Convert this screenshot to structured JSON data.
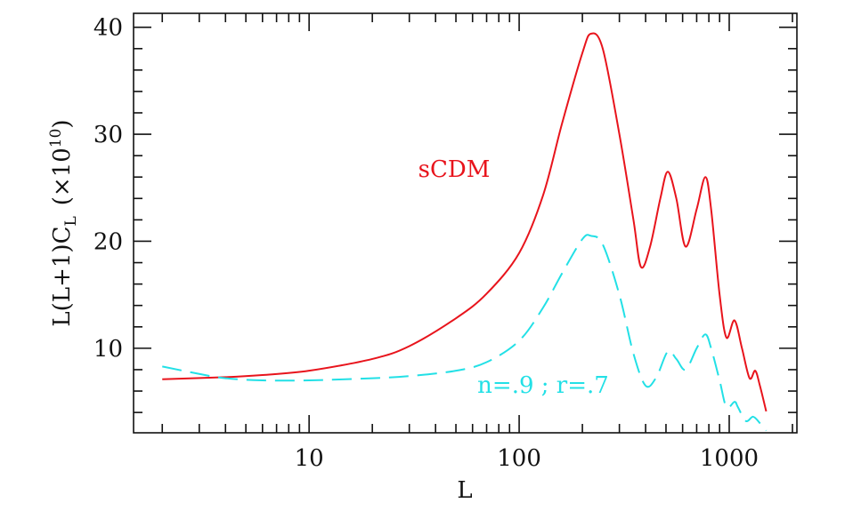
{
  "chart_data": {
    "type": "line",
    "x_label": "L",
    "y_label": {
      "main": "L(L+1)C",
      "sub": "L",
      "pre": "(×10",
      "sup": "10",
      "post": ")"
    },
    "xscale": "log",
    "xlim": [
      1.46,
      2100
    ],
    "ylim": [
      2.1,
      41.3
    ],
    "xticks": [
      10,
      100,
      1000
    ],
    "xminor_ticks": [
      2,
      3,
      4,
      5,
      6,
      7,
      8,
      9,
      20,
      30,
      40,
      50,
      60,
      70,
      80,
      90,
      200,
      300,
      400,
      500,
      600,
      700,
      800,
      900,
      2000
    ],
    "yticks": [
      10,
      20,
      30,
      40
    ],
    "yminor_ticks": [
      4,
      6,
      8,
      12,
      14,
      16,
      18,
      22,
      24,
      26,
      28,
      32,
      34,
      36,
      38
    ],
    "series": [
      {
        "name": "sCDM",
        "color": "#e8141c",
        "dashed": false,
        "x": [
          2,
          4,
          6,
          10,
          20,
          30,
          50,
          70,
          100,
          130,
          160,
          200,
          220,
          250,
          300,
          350,
          380,
          420,
          470,
          510,
          560,
          620,
          700,
          770,
          820,
          900,
          970,
          1060,
          1150,
          1250,
          1330,
          1400,
          1500
        ],
        "values": [
          7.1,
          7.3,
          7.5,
          7.9,
          9.0,
          10.2,
          12.8,
          15.1,
          18.9,
          24.3,
          31,
          37.6,
          39.4,
          38,
          30,
          22,
          17.6,
          19.5,
          24,
          26.5,
          24,
          19.5,
          23,
          26,
          23,
          15,
          11,
          12.6,
          10,
          7.2,
          7.9,
          6.5,
          4.1
        ]
      },
      {
        "name": "n=.9 ; r=.7",
        "color": "#22e0e6",
        "dashed": true,
        "x": [
          2,
          3,
          4,
          6,
          10,
          20,
          30,
          50,
          70,
          100,
          130,
          160,
          200,
          220,
          250,
          300,
          350,
          400,
          450,
          510,
          560,
          620,
          700,
          770,
          820,
          900,
          970,
          1060,
          1100,
          1200,
          1300,
          1400,
          1500
        ],
        "values": [
          8.3,
          7.6,
          7.2,
          7.0,
          7.0,
          7.2,
          7.4,
          7.9,
          8.7,
          10.7,
          13.8,
          17,
          20.2,
          20.5,
          19.7,
          15,
          9.5,
          6.5,
          7.3,
          9.7,
          9.0,
          8.0,
          10,
          11.3,
          10,
          7,
          4.5,
          5.0,
          4.5,
          3.2,
          3.6,
          3.0,
          2.3
        ]
      }
    ]
  }
}
